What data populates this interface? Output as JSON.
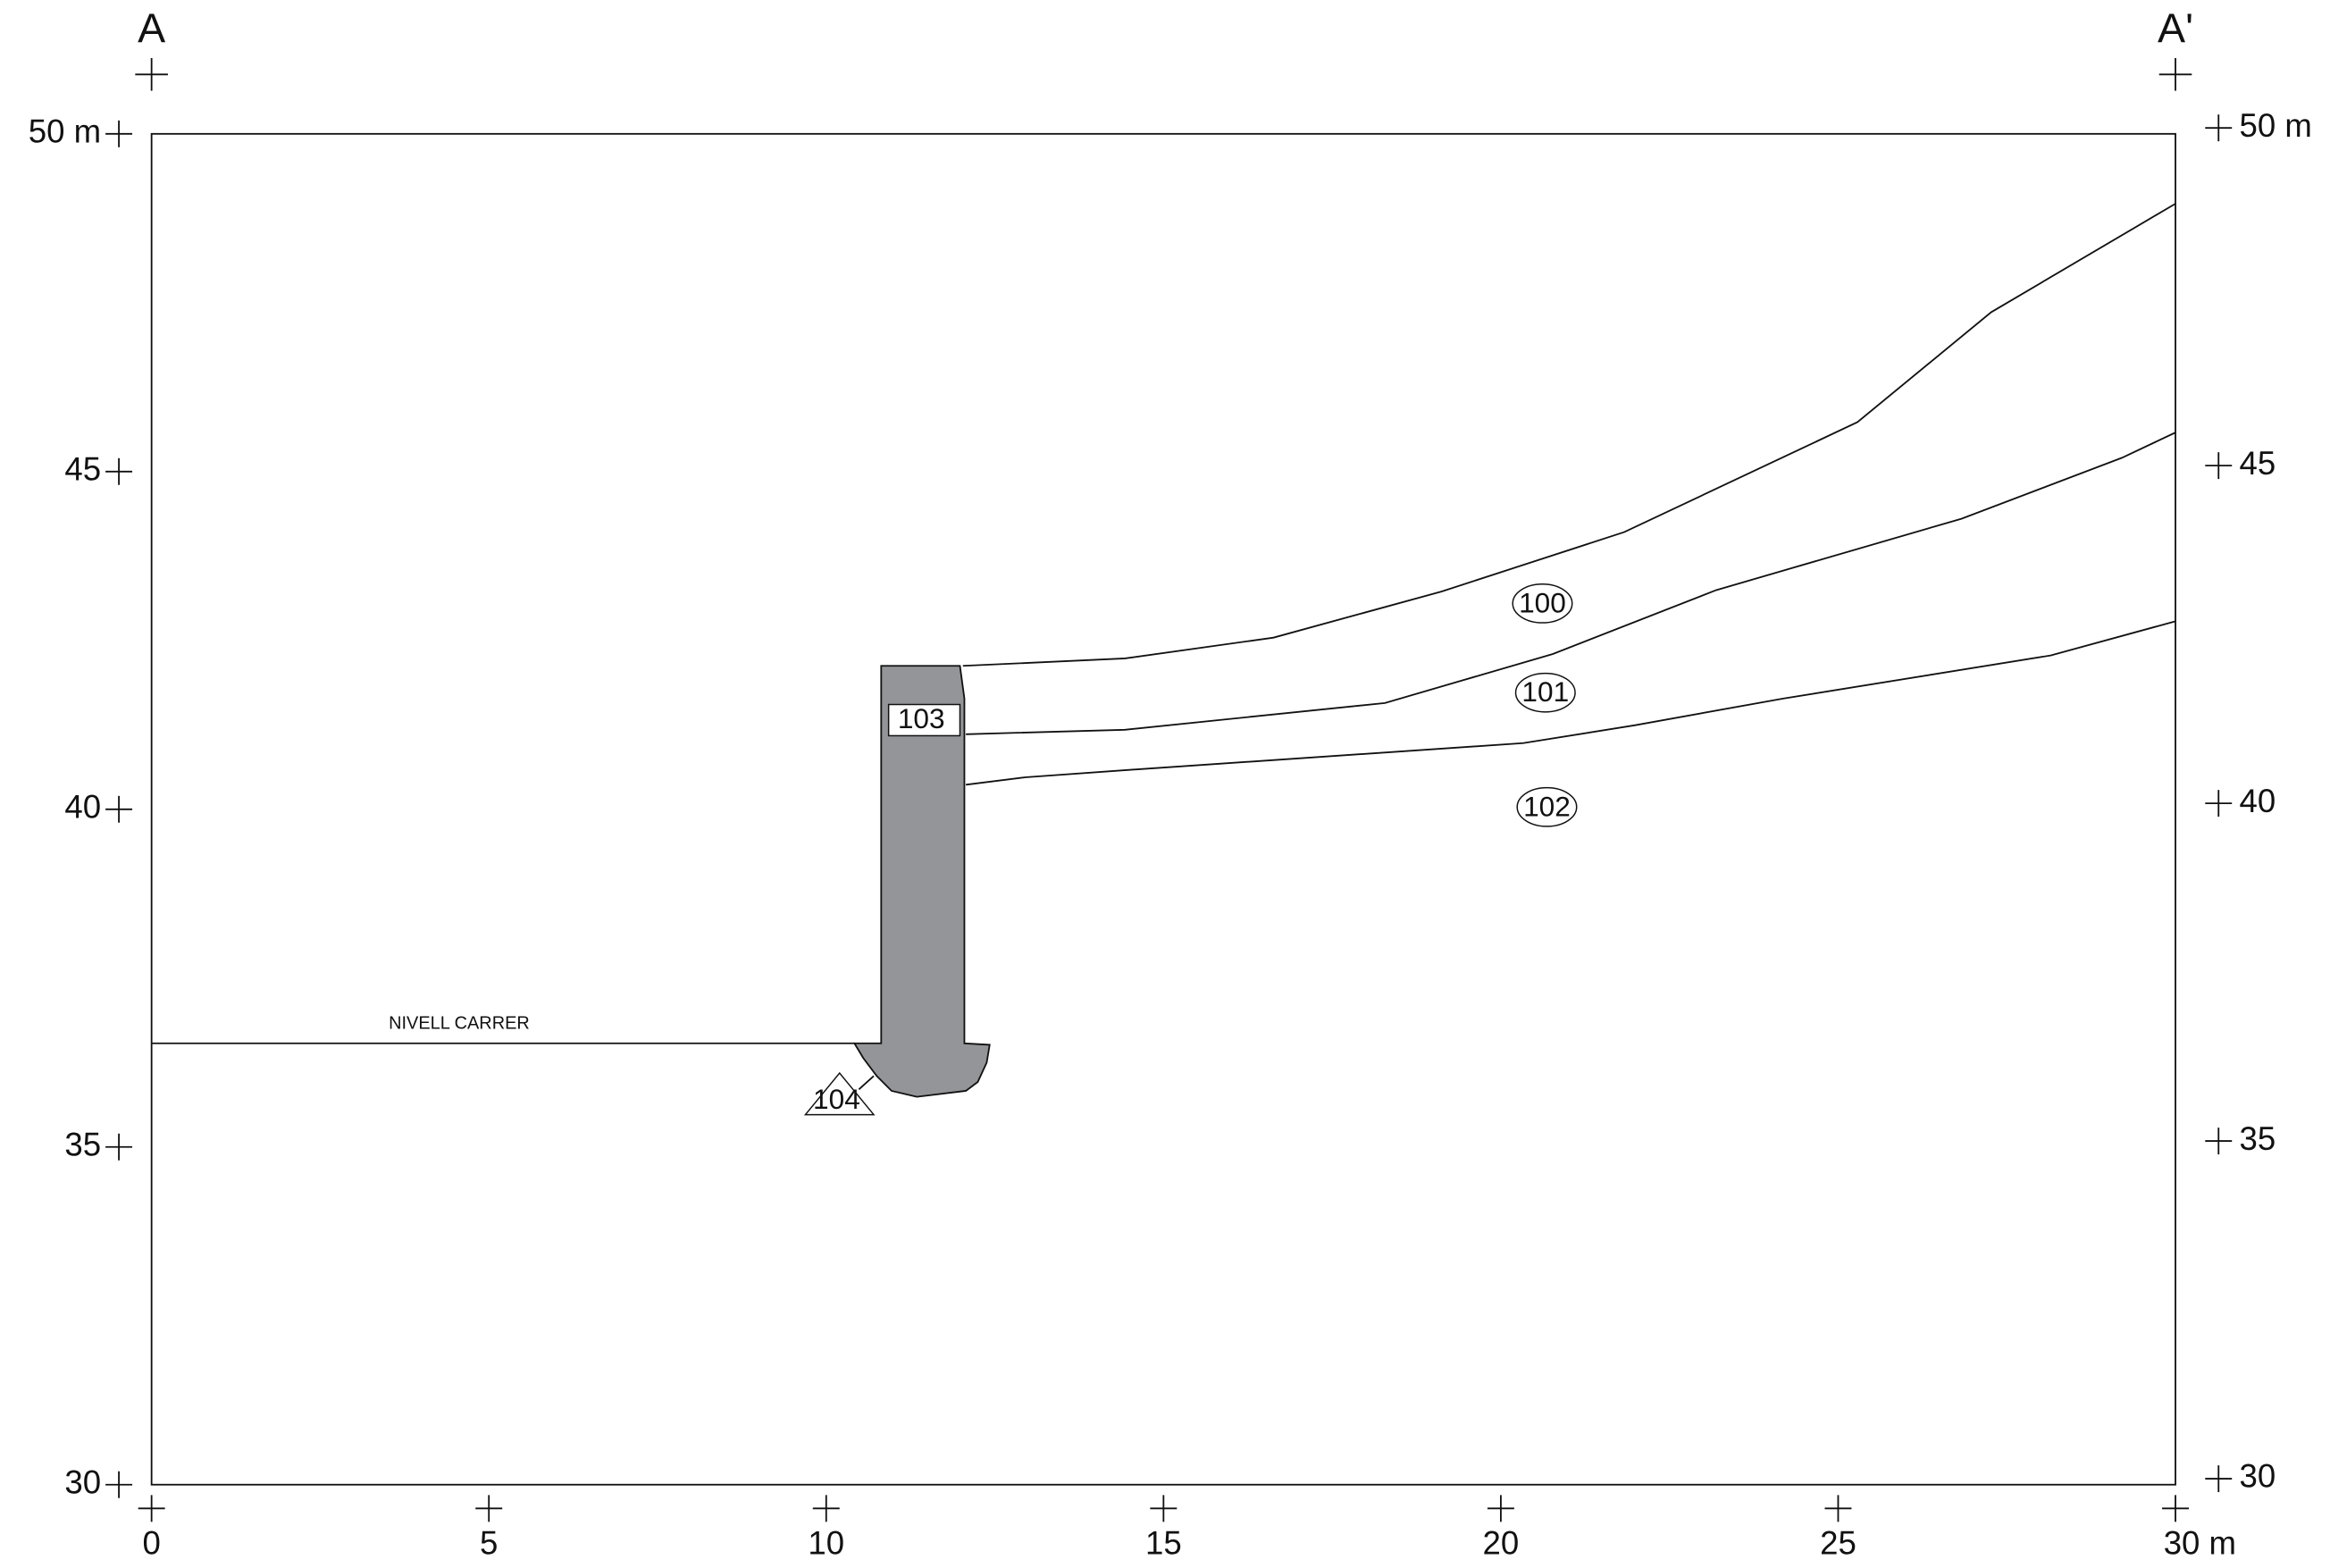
{
  "section": {
    "start_label": "A",
    "end_label": "A'"
  },
  "x_axis": {
    "labels": [
      "0",
      "5",
      "10",
      "15",
      "20",
      "25",
      "30 m"
    ]
  },
  "left_axis": {
    "labels": [
      "50 m",
      "45",
      "40",
      "35",
      "30"
    ]
  },
  "right_axis": {
    "labels": [
      "50 m",
      "45",
      "40",
      "35",
      "30"
    ]
  },
  "annotations": {
    "street_level": "NIVELL CARRER"
  },
  "units": [
    {
      "label": "100"
    },
    {
      "label": "101"
    },
    {
      "label": "102"
    },
    {
      "label": "103"
    },
    {
      "label": "104"
    }
  ]
}
